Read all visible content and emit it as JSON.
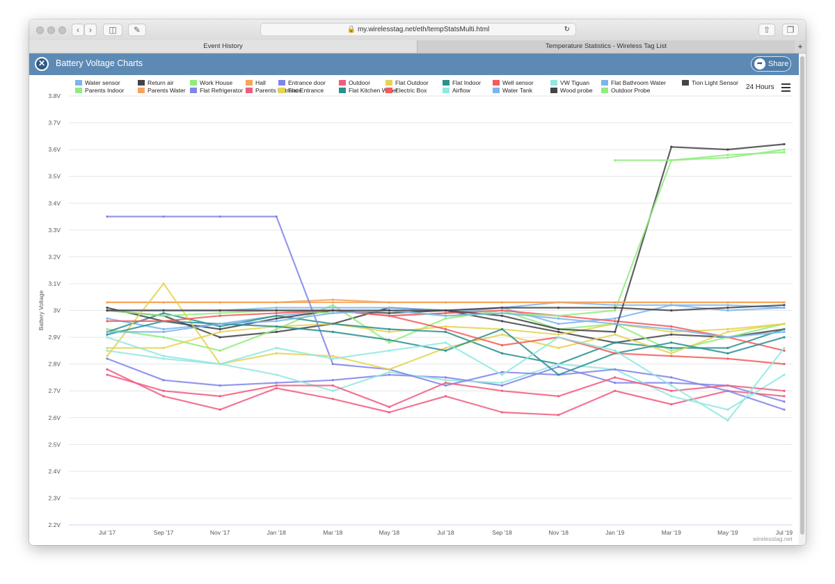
{
  "browser": {
    "url": "my.wirelesstag.net/eth/tempStatsMulti.html",
    "tabs": [
      {
        "label": "Event History",
        "active": true
      },
      {
        "label": "Temperature Statistics - Wireless Tag List",
        "active": false
      }
    ],
    "new_tab_label": "+"
  },
  "app": {
    "title": "Battery Voltage Charts",
    "share_label": "Share",
    "range_label": "24 Hours",
    "credit": "wirelesstag.net"
  },
  "chart_data": {
    "type": "line",
    "title": "",
    "ylabel": "Battery Voltage",
    "ylim": [
      2.2,
      3.8
    ],
    "yticks": [
      "3.8V",
      "3.7V",
      "3.6V",
      "3.5V",
      "3.4V",
      "3.3V",
      "3.2V",
      "3.1V",
      "3V",
      "2.9V",
      "2.8V",
      "2.7V",
      "2.6V",
      "2.5V",
      "2.4V",
      "2.3V",
      "2.2V"
    ],
    "xticks": [
      "Jul '17",
      "Sep '17",
      "Nov '17",
      "Jan '18",
      "Mar '18",
      "May '18",
      "Jul '18",
      "Sep '18",
      "Nov '18",
      "Jan '19",
      "Mar '19",
      "May '19",
      "Jul '19"
    ],
    "legend_position": "top",
    "series": [
      {
        "name": "Water sensor",
        "color": "#7cb5ec",
        "values": [
          2.97,
          2.93,
          2.95,
          2.98,
          3.0,
          2.98,
          2.99,
          3.01,
          2.95,
          2.97,
          3.02,
          3.0,
          3.01
        ]
      },
      {
        "name": "Return air",
        "color": "#434348",
        "values": [
          3.0,
          2.98,
          2.9,
          2.92,
          2.95,
          3.01,
          3.0,
          2.96,
          2.92,
          2.88,
          2.91,
          2.9,
          2.93
        ]
      },
      {
        "name": "Work House",
        "color": "#90ed7d",
        "values": [
          2.93,
          2.9,
          2.85,
          2.93,
          3.02,
          2.88,
          2.97,
          3.0,
          2.93,
          2.95,
          2.85,
          2.9,
          2.95
        ]
      },
      {
        "name": "Hall",
        "color": "#f7a35c",
        "values": [
          3.03,
          3.03,
          3.03,
          3.03,
          3.03,
          3.03,
          3.03,
          3.03,
          3.03,
          3.03,
          3.03,
          3.03,
          3.03
        ]
      },
      {
        "name": "Entrance door",
        "color": "#8085e9",
        "values": [
          2.82,
          2.74,
          2.72,
          2.73,
          2.74,
          2.76,
          2.75,
          2.72,
          2.79,
          2.73,
          2.73,
          2.72,
          2.66
        ]
      },
      {
        "name": "Outdoor",
        "color": "#f15c80",
        "values": [
          2.78,
          2.68,
          2.63,
          2.71,
          2.67,
          2.62,
          2.68,
          2.62,
          2.61,
          2.7,
          2.65,
          2.7,
          2.68
        ]
      },
      {
        "name": "Flat Outdoor",
        "color": "#e4d354",
        "values": [
          2.86,
          2.86,
          2.92,
          2.94,
          2.95,
          2.92,
          2.94,
          2.93,
          2.91,
          2.95,
          2.92,
          2.93,
          2.95
        ]
      },
      {
        "name": "Flat Indoor",
        "color": "#2b908f",
        "values": [
          2.92,
          2.99,
          2.94,
          2.98,
          2.95,
          2.93,
          2.92,
          2.84,
          2.8,
          2.88,
          2.86,
          2.86,
          2.93
        ]
      },
      {
        "name": "Well sensor",
        "color": "#f45b5b",
        "values": [
          3.0,
          3.0,
          3.0,
          3.0,
          3.0,
          2.98,
          2.99,
          3.0,
          2.98,
          2.96,
          2.94,
          2.9,
          2.85
        ]
      },
      {
        "name": "VW Tiguan",
        "color": "#91e8e1",
        "values": [
          2.85,
          2.82,
          2.8,
          2.76,
          2.7,
          2.77,
          2.74,
          2.73,
          2.8,
          2.78,
          2.68,
          2.63,
          2.76
        ]
      },
      {
        "name": "Flat Bathroom Water",
        "color": "#7cb5ec",
        "values": [
          3.0,
          3.0,
          3.0,
          3.01,
          3.01,
          3.01,
          3.0,
          3.01,
          3.03,
          3.02,
          3.02,
          3.02,
          3.01
        ]
      },
      {
        "name": "Tion Light Sensor",
        "color": "#434348",
        "values": [
          3.01,
          2.96,
          2.93,
          2.97,
          3.0,
          2.99,
          3.0,
          2.98,
          2.93,
          2.92,
          3.61,
          3.6,
          3.62
        ]
      },
      {
        "name": "Parents Indoor",
        "color": "#90ed7d",
        "values": [
          3.0,
          2.98,
          2.99,
          3.0,
          2.99,
          3.0,
          2.98,
          2.99,
          2.98,
          3.0,
          3.56,
          3.58,
          3.59
        ]
      },
      {
        "name": "Parents Water",
        "color": "#f7a35c",
        "values": [
          3.03,
          3.03,
          3.03,
          3.03,
          3.04,
          3.03,
          3.03,
          3.03,
          3.03,
          3.03,
          3.03,
          3.03,
          3.03
        ]
      },
      {
        "name": "Flat Refrigerator",
        "color": "#8085e9",
        "values": [
          3.35,
          3.35,
          3.35,
          3.35,
          2.8,
          2.78,
          2.72,
          2.77,
          2.76,
          2.78,
          2.75,
          2.7,
          2.63
        ]
      },
      {
        "name": "Parents Entrance",
        "color": "#f15c80",
        "values": [
          2.76,
          2.7,
          2.68,
          2.72,
          2.72,
          2.64,
          2.73,
          2.7,
          2.68,
          2.75,
          2.7,
          2.72,
          2.7
        ]
      },
      {
        "name": "Flat Entrance",
        "color": "#e4d354",
        "values": [
          2.83,
          3.1,
          2.8,
          2.84,
          2.83,
          2.78,
          2.86,
          2.91,
          2.86,
          2.91,
          2.84,
          2.92,
          2.95
        ]
      },
      {
        "name": "Flat Kitchen Water",
        "color": "#2b908f",
        "values": [
          2.91,
          2.96,
          2.95,
          2.94,
          2.92,
          2.89,
          2.85,
          2.93,
          2.76,
          2.84,
          2.88,
          2.84,
          2.9
        ]
      },
      {
        "name": "Electric Box",
        "color": "#f45b5b",
        "values": [
          2.96,
          2.96,
          2.98,
          2.99,
          3.0,
          2.98,
          2.93,
          2.87,
          2.9,
          2.84,
          2.83,
          2.82,
          2.8
        ]
      },
      {
        "name": "Airflow",
        "color": "#91e8e1",
        "values": [
          2.9,
          2.83,
          2.8,
          2.86,
          2.82,
          2.85,
          2.88,
          2.76,
          2.9,
          2.85,
          2.72,
          2.59,
          2.86
        ]
      },
      {
        "name": "Water Tank",
        "color": "#7cb5ec",
        "values": [
          2.92,
          2.92,
          2.95,
          2.96,
          2.99,
          3.0,
          2.98,
          2.99,
          2.97,
          2.95,
          2.93,
          2.9,
          2.92
        ]
      },
      {
        "name": "Wood probe",
        "color": "#434348",
        "values": [
          3.0,
          3.0,
          3.0,
          3.0,
          3.0,
          3.0,
          3.0,
          3.01,
          3.01,
          3.01,
          3.0,
          3.01,
          3.02
        ]
      },
      {
        "name": "Outdoor Probe",
        "color": "#90ed7d",
        "values": [
          null,
          null,
          null,
          null,
          null,
          null,
          null,
          null,
          null,
          3.56,
          3.56,
          3.57,
          3.6
        ]
      }
    ]
  }
}
